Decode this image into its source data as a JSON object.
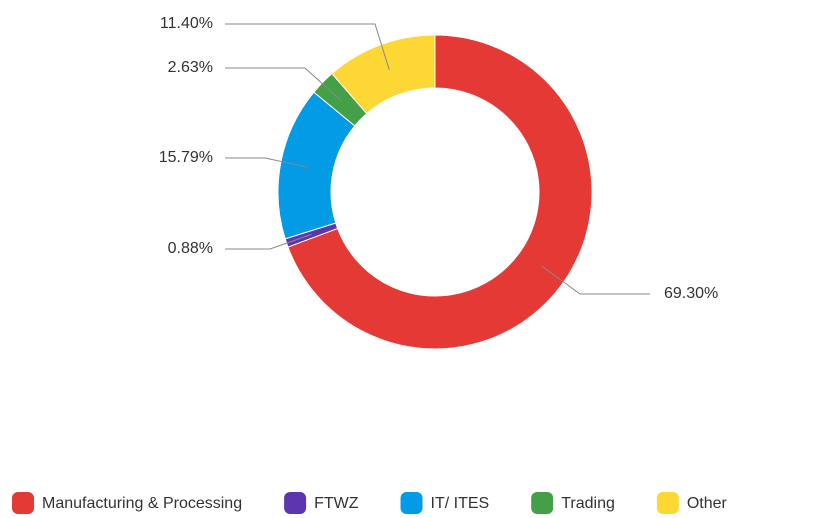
{
  "chart_data": {
    "type": "donut",
    "categories": [
      "Manufacturing & Processing",
      "FTWZ",
      "IT/ ITES",
      "Trading",
      "Other"
    ],
    "values": [
      69.3,
      0.88,
      15.79,
      2.63,
      11.4
    ],
    "value_labels": [
      "69.30%",
      "0.88%",
      "15.79%",
      "2.63%",
      "11.40%"
    ],
    "colors": [
      "#e53935",
      "#5e35b1",
      "#039be5",
      "#43a047",
      "#fdd835"
    ],
    "legend": "bottom"
  }
}
